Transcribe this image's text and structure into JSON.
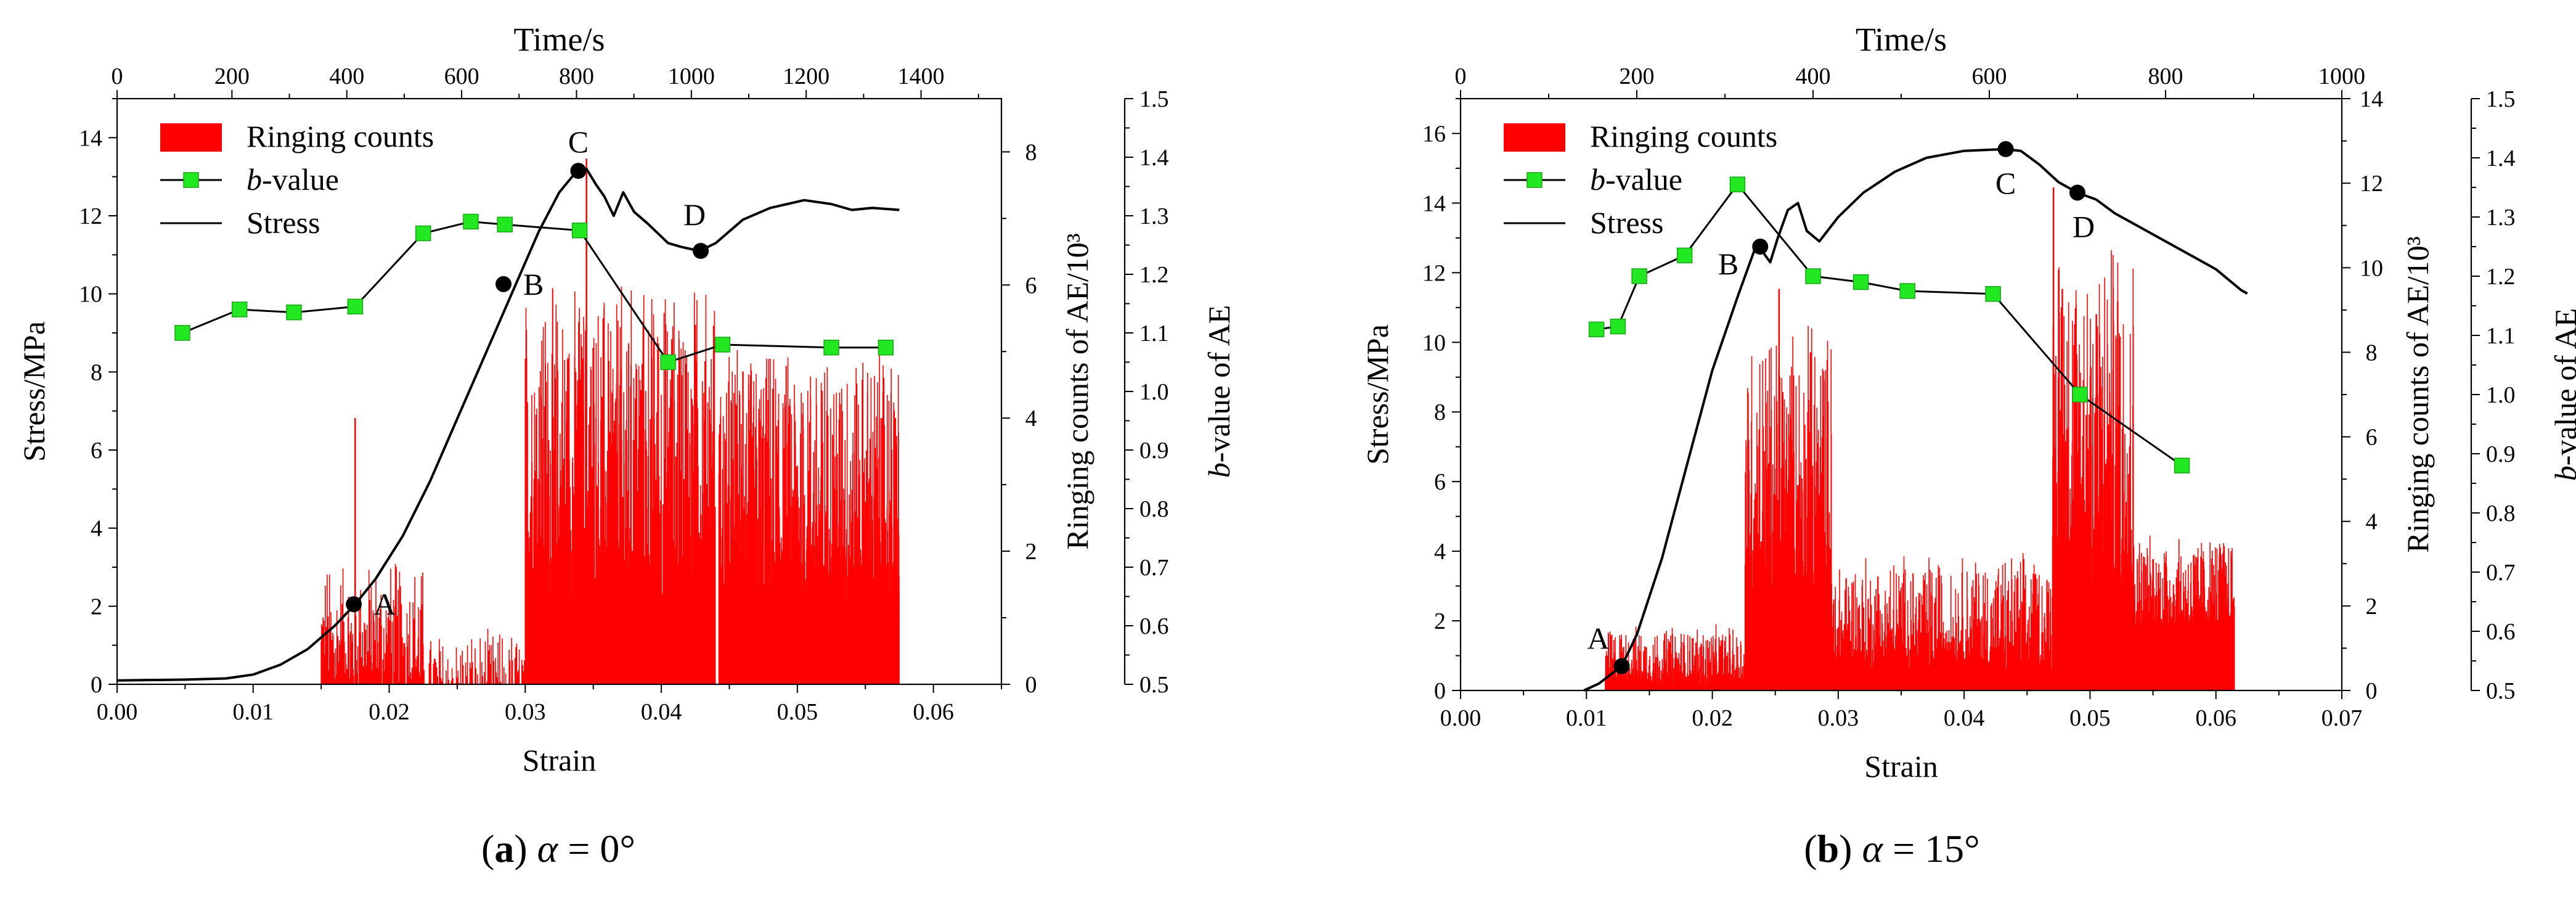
{
  "chart_data": [
    {
      "id": "a",
      "type": "line+bar",
      "caption_letter": "a",
      "caption_symbol": "α",
      "caption_value": " = 0°",
      "xlabel": "Strain",
      "xlim": [
        0,
        0.065
      ],
      "xticks": [
        "0.00",
        "0.01",
        "0.02",
        "0.03",
        "0.04",
        "0.05",
        "0.06"
      ],
      "top_label": "Time/s",
      "top_lim": [
        0,
        1540
      ],
      "top_ticks": [
        "0",
        "200",
        "400",
        "600",
        "800",
        "1000",
        "1200",
        "1400"
      ],
      "ylabel": "Stress/MPa",
      "ylim": [
        0,
        15
      ],
      "yticks": [
        "0",
        "2",
        "4",
        "6",
        "8",
        "10",
        "12",
        "14"
      ],
      "y2label": "Ringing counts of AE/10³",
      "y2lim": [
        0,
        8.8
      ],
      "y2ticks": [
        "0",
        "2",
        "4",
        "6",
        "8"
      ],
      "y3label_italic": "b",
      "y3label_rest": "-value of AE",
      "y3lim": [
        0.5,
        1.5
      ],
      "y3ticks": [
        "0.5",
        "0.6",
        "0.7",
        "0.8",
        "0.9",
        "1.0",
        "1.1",
        "1.2",
        "1.3",
        "1.4",
        "1.5"
      ],
      "legend": {
        "ringing": "Ringing counts",
        "bvalue_italic": "b",
        "bvalue_rest": "-value",
        "stress": "Stress"
      },
      "stress": [
        [
          0,
          0.1
        ],
        [
          0.005,
          0.12
        ],
        [
          0.008,
          0.15
        ],
        [
          0.01,
          0.25
        ],
        [
          0.012,
          0.5
        ],
        [
          0.014,
          0.9
        ],
        [
          0.016,
          1.5
        ],
        [
          0.0175,
          2.05
        ],
        [
          0.019,
          2.7
        ],
        [
          0.021,
          3.8
        ],
        [
          0.023,
          5.2
        ],
        [
          0.025,
          6.8
        ],
        [
          0.027,
          8.4
        ],
        [
          0.029,
          10.0
        ],
        [
          0.031,
          11.6
        ],
        [
          0.0325,
          12.6
        ],
        [
          0.0338,
          13.15
        ],
        [
          0.0345,
          13.2
        ],
        [
          0.0352,
          12.8
        ],
        [
          0.0358,
          12.5
        ],
        [
          0.0365,
          12.0
        ],
        [
          0.0372,
          12.6
        ],
        [
          0.038,
          12.1
        ],
        [
          0.039,
          11.8
        ],
        [
          0.0405,
          11.3
        ],
        [
          0.0415,
          11.2
        ],
        [
          0.0428,
          11.1
        ],
        [
          0.044,
          11.3
        ],
        [
          0.046,
          11.9
        ],
        [
          0.048,
          12.2
        ],
        [
          0.0505,
          12.4
        ],
        [
          0.0525,
          12.3
        ],
        [
          0.054,
          12.15
        ],
        [
          0.0555,
          12.2
        ],
        [
          0.0575,
          12.15
        ]
      ],
      "points": [
        {
          "label": "A",
          "x": 0.0174,
          "y": 2.05
        },
        {
          "label": "B",
          "x": 0.0284,
          "y": 10.25
        },
        {
          "label": "C",
          "x": 0.0339,
          "y": 13.15
        },
        {
          "label": "D",
          "x": 0.0429,
          "y": 11.1
        }
      ],
      "bvalue": [
        [
          0.0048,
          1.1
        ],
        [
          0.009,
          1.14
        ],
        [
          0.013,
          1.135
        ],
        [
          0.0175,
          1.145
        ],
        [
          0.0225,
          1.27
        ],
        [
          0.026,
          1.29
        ],
        [
          0.0285,
          1.285
        ],
        [
          0.034,
          1.275
        ],
        [
          0.0405,
          1.05
        ],
        [
          0.0445,
          1.08
        ],
        [
          0.0525,
          1.075
        ],
        [
          0.0565,
          1.075
        ]
      ],
      "ringing_segments": [
        {
          "x0": 0.015,
          "x1": 0.0225,
          "base": 0.5,
          "amp": 0.9,
          "density": 220
        },
        {
          "x0": 0.0225,
          "x1": 0.03,
          "base": 0.12,
          "amp": 0.45,
          "density": 120
        },
        {
          "x0": 0.03,
          "x1": 0.044,
          "base": 2.6,
          "amp": 2.2,
          "density": 760
        },
        {
          "x0": 0.044,
          "x1": 0.0575,
          "base": 2.3,
          "amp": 1.8,
          "density": 700
        }
      ],
      "ringing_spikes": [
        [
          0.0175,
          4.0
        ],
        [
          0.0345,
          7.9
        ],
        [
          0.0425,
          5.4
        ],
        [
          0.046,
          4.7
        ],
        [
          0.0562,
          4.0
        ],
        [
          0.0572,
          4.0
        ]
      ],
      "ringing_gaps": [
        0.0441
      ]
    },
    {
      "id": "b",
      "type": "line+bar",
      "caption_letter": "b",
      "caption_symbol": "α",
      "caption_value": " = 15°",
      "xlabel": "Strain",
      "xlim": [
        0,
        0.07
      ],
      "xticks": [
        "0.00",
        "0.01",
        "0.02",
        "0.03",
        "0.04",
        "0.05",
        "0.06",
        "0.07"
      ],
      "top_label": "Time/s",
      "top_lim": [
        0,
        1000
      ],
      "top_ticks": [
        "0",
        "200",
        "400",
        "600",
        "800",
        "1000"
      ],
      "ylabel": "Stress/MPa",
      "ylim": [
        0,
        17
      ],
      "yticks": [
        "0",
        "2",
        "4",
        "6",
        "8",
        "10",
        "12",
        "14",
        "16"
      ],
      "y2label": "Ringing counts of AE/10³",
      "y2lim": [
        0,
        14
      ],
      "y2ticks": [
        "0",
        "2",
        "4",
        "6",
        "8",
        "10",
        "12",
        "14"
      ],
      "y3label_italic": "b",
      "y3label_rest": "-value of AE",
      "y3lim": [
        0.5,
        1.5
      ],
      "y3ticks": [
        "0.5",
        "0.6",
        "0.7",
        "0.8",
        "0.9",
        "1.0",
        "1.1",
        "1.2",
        "1.3",
        "1.4",
        "1.5"
      ],
      "legend": {
        "ringing": "Ringing counts",
        "bvalue_italic": "b",
        "bvalue_rest": "-value",
        "stress": "Stress"
      },
      "stress": [
        [
          0.0098,
          0
        ],
        [
          0.011,
          0.2
        ],
        [
          0.0128,
          0.7
        ],
        [
          0.014,
          1.6
        ],
        [
          0.016,
          3.8
        ],
        [
          0.018,
          6.5
        ],
        [
          0.02,
          9.2
        ],
        [
          0.022,
          11.3
        ],
        [
          0.0234,
          12.7
        ],
        [
          0.024,
          12.6
        ],
        [
          0.0246,
          12.3
        ],
        [
          0.0252,
          13.0
        ],
        [
          0.026,
          13.8
        ],
        [
          0.0268,
          14.0
        ],
        [
          0.0275,
          13.2
        ],
        [
          0.0285,
          12.9
        ],
        [
          0.03,
          13.6
        ],
        [
          0.032,
          14.3
        ],
        [
          0.0345,
          14.9
        ],
        [
          0.037,
          15.3
        ],
        [
          0.04,
          15.5
        ],
        [
          0.0432,
          15.55
        ],
        [
          0.0445,
          15.5
        ],
        [
          0.046,
          15.1
        ],
        [
          0.0475,
          14.6
        ],
        [
          0.049,
          14.3
        ],
        [
          0.0505,
          14.1
        ],
        [
          0.052,
          13.7
        ],
        [
          0.054,
          13.3
        ],
        [
          0.056,
          12.9
        ],
        [
          0.058,
          12.5
        ],
        [
          0.06,
          12.1
        ],
        [
          0.062,
          11.5
        ],
        [
          0.0625,
          11.4
        ]
      ],
      "points": [
        {
          "label": "A",
          "x": 0.0128,
          "y": 0.7
        },
        {
          "label": "B",
          "x": 0.0238,
          "y": 12.75
        },
        {
          "label": "C",
          "x": 0.0433,
          "y": 15.55
        },
        {
          "label": "D",
          "x": 0.049,
          "y": 14.3
        }
      ],
      "bvalue": [
        [
          0.0108,
          1.11
        ],
        [
          0.0125,
          1.115
        ],
        [
          0.0142,
          1.2
        ],
        [
          0.0178,
          1.235
        ],
        [
          0.022,
          1.355
        ],
        [
          0.028,
          1.2
        ],
        [
          0.0318,
          1.19
        ],
        [
          0.0355,
          1.175
        ],
        [
          0.0423,
          1.17
        ],
        [
          0.0492,
          1.0
        ],
        [
          0.0573,
          0.88
        ]
      ],
      "ringing_segments": [
        {
          "x0": 0.0115,
          "x1": 0.0226,
          "base": 0.6,
          "amp": 0.6,
          "density": 380
        },
        {
          "x0": 0.0226,
          "x1": 0.0295,
          "base": 4.0,
          "amp": 3.0,
          "density": 300
        },
        {
          "x0": 0.0295,
          "x1": 0.047,
          "base": 1.4,
          "amp": 1.2,
          "density": 520
        },
        {
          "x0": 0.047,
          "x1": 0.0535,
          "base": 4.8,
          "amp": 3.8,
          "density": 320
        },
        {
          "x0": 0.0535,
          "x1": 0.0615,
          "base": 2.2,
          "amp": 1.0,
          "density": 260
        }
      ],
      "ringing_spikes": [
        [
          0.0253,
          9.5
        ],
        [
          0.0278,
          8.0
        ],
        [
          0.0471,
          11.9
        ],
        [
          0.0478,
          9.5
        ],
        [
          0.0522,
          9.2
        ],
        [
          0.0505,
          8.9
        ]
      ],
      "ringing_gaps": []
    }
  ]
}
